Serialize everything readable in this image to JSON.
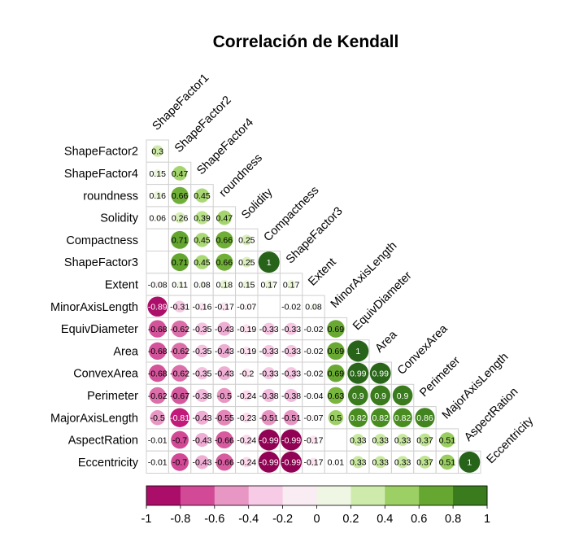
{
  "chart_data": {
    "type": "heatmap",
    "title": "Correlación de Kendall",
    "variables": [
      "ShapeFactor1",
      "ShapeFactor2",
      "ShapeFactor4",
      "roundness",
      "Solidity",
      "Compactness",
      "ShapeFactor3",
      "Extent",
      "MinorAxisLength",
      "EquivDiameter",
      "Area",
      "ConvexArea",
      "Perimeter",
      "MajorAxisLength",
      "AspectRation",
      "Eccentricity"
    ],
    "rows": [
      {
        "label": "ShapeFactor2",
        "values": [
          0.3
        ]
      },
      {
        "label": "ShapeFactor4",
        "values": [
          0.15,
          0.47
        ]
      },
      {
        "label": "roundness",
        "values": [
          0.16,
          0.66,
          0.45
        ]
      },
      {
        "label": "Solidity",
        "values": [
          0.06,
          0.26,
          0.39,
          0.47
        ]
      },
      {
        "label": "Compactness",
        "values": [
          null,
          0.71,
          0.45,
          0.66,
          0.25
        ]
      },
      {
        "label": "ShapeFactor3",
        "values": [
          null,
          0.71,
          0.45,
          0.66,
          0.25,
          1
        ]
      },
      {
        "label": "Extent",
        "values": [
          -0.08,
          0.11,
          0.08,
          0.18,
          0.15,
          0.17,
          0.17
        ]
      },
      {
        "label": "MinorAxisLength",
        "values": [
          -0.89,
          -0.31,
          -0.16,
          -0.17,
          -0.07,
          null,
          -0.02,
          0.08
        ]
      },
      {
        "label": "EquivDiameter",
        "values": [
          -0.68,
          -0.62,
          -0.35,
          -0.43,
          -0.19,
          -0.33,
          -0.33,
          -0.02,
          0.69
        ]
      },
      {
        "label": "Area",
        "values": [
          -0.68,
          -0.62,
          -0.35,
          -0.43,
          -0.19,
          -0.33,
          -0.33,
          -0.02,
          0.69,
          1
        ]
      },
      {
        "label": "ConvexArea",
        "values": [
          -0.68,
          -0.62,
          -0.35,
          -0.43,
          -0.2,
          -0.33,
          -0.33,
          -0.02,
          0.69,
          0.99,
          0.99
        ]
      },
      {
        "label": "Perimeter",
        "values": [
          -0.62,
          -0.67,
          -0.38,
          -0.5,
          -0.24,
          -0.38,
          -0.38,
          -0.04,
          0.63,
          0.9,
          0.9,
          0.9
        ]
      },
      {
        "label": "MajorAxisLength",
        "values": [
          -0.5,
          -0.81,
          -0.43,
          -0.55,
          -0.23,
          -0.51,
          -0.51,
          -0.07,
          0.5,
          0.82,
          0.82,
          0.82,
          0.86
        ]
      },
      {
        "label": "AspectRation",
        "values": [
          -0.01,
          -0.7,
          -0.43,
          -0.66,
          -0.24,
          -0.99,
          -0.99,
          -0.17,
          null,
          0.33,
          0.33,
          0.33,
          0.37,
          0.51
        ]
      },
      {
        "label": "Eccentricity",
        "values": [
          -0.01,
          -0.7,
          -0.43,
          -0.66,
          -0.24,
          -0.99,
          -0.99,
          -0.17,
          0.01,
          0.33,
          0.33,
          0.33,
          0.37,
          0.51,
          1
        ]
      }
    ],
    "colorbar": {
      "ticks": [
        "-1",
        "-0.8",
        "-0.6",
        "-0.4",
        "-0.2",
        "0",
        "0.2",
        "0.4",
        "0.6",
        "0.8",
        "1"
      ],
      "colors": [
        "#8e0152",
        "#c51b7d",
        "#de77ae",
        "#f1b6da",
        "#fde0ef",
        "#f7f7f7",
        "#e6f5d0",
        "#b8e186",
        "#7fbc41",
        "#4d9221",
        "#276419"
      ],
      "range": [
        -1,
        1
      ]
    }
  }
}
